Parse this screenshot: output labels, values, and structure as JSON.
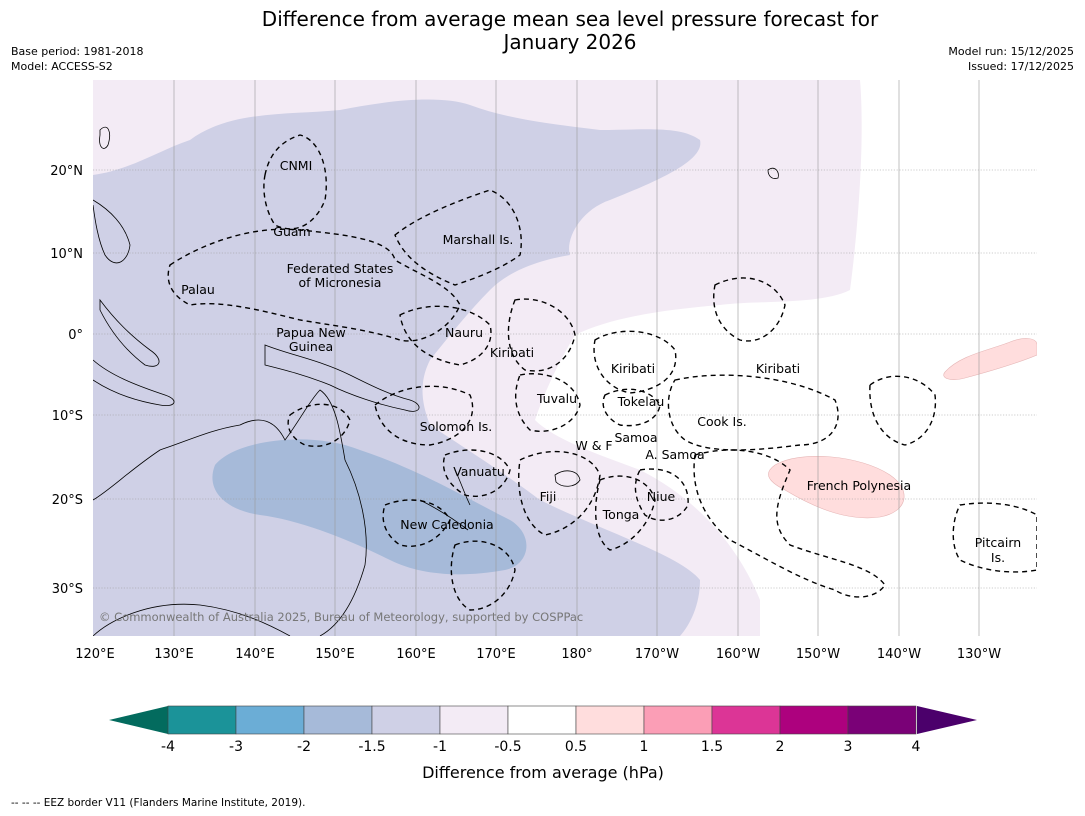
{
  "title_line1": "Difference from average mean sea level pressure forecast for",
  "title_line2": "January 2026",
  "meta": {
    "base_period": "Base period: 1981-2018",
    "model": "Model: ACCESS-S2",
    "model_run": "Model run: 15/12/2025",
    "issued": "Issued: 17/12/2025"
  },
  "axes": {
    "lon_labels": [
      "120°E",
      "130°E",
      "140°E",
      "150°E",
      "160°E",
      "170°E",
      "180°",
      "170°W",
      "160°W",
      "150°W",
      "140°W",
      "130°W"
    ],
    "lat_labels": [
      "20°N",
      "10°N",
      "0°",
      "10°S",
      "20°S",
      "30°S"
    ]
  },
  "region_labels": [
    {
      "id": "cnmi",
      "text": "CNMI"
    },
    {
      "id": "guam",
      "text": "Guam"
    },
    {
      "id": "marshall",
      "text": "Marshall Is."
    },
    {
      "id": "fsm1",
      "text": "Federated States"
    },
    {
      "id": "fsm2",
      "text": "of Micronesia"
    },
    {
      "id": "palau",
      "text": "Palau"
    },
    {
      "id": "png1",
      "text": "Papua New"
    },
    {
      "id": "png2",
      "text": "Guinea"
    },
    {
      "id": "nauru",
      "text": "Nauru"
    },
    {
      "id": "kiribati-w",
      "text": "Kiribati"
    },
    {
      "id": "kiribati-c",
      "text": "Kiribati"
    },
    {
      "id": "kiribati-e",
      "text": "Kiribati"
    },
    {
      "id": "tuvalu",
      "text": "Tuvalu"
    },
    {
      "id": "tokelau",
      "text": "Tokelau"
    },
    {
      "id": "solomon",
      "text": "Solomon Is."
    },
    {
      "id": "cook",
      "text": "Cook Is."
    },
    {
      "id": "wf",
      "text": "W & F"
    },
    {
      "id": "samoa",
      "text": "Samoa"
    },
    {
      "id": "asamoa",
      "text": "A. Samoa"
    },
    {
      "id": "vanuatu",
      "text": "Vanuatu"
    },
    {
      "id": "fiji",
      "text": "Fiji"
    },
    {
      "id": "niue",
      "text": "Niue"
    },
    {
      "id": "frpoly",
      "text": "French Polynesia"
    },
    {
      "id": "tonga",
      "text": "Tonga"
    },
    {
      "id": "newcal",
      "text": "New Caledonia"
    },
    {
      "id": "pitcairn1",
      "text": "Pitcairn"
    },
    {
      "id": "pitcairn2",
      "text": "Is."
    }
  ],
  "copyright": "© Commonwealth of Australia 2025, Bureau of Meteorology, supported by COSPPac",
  "colorbar": {
    "label": "Difference from average (hPa)",
    "tick_labels": [
      "-4",
      "-3",
      "-2",
      "-1.5",
      "-1",
      "-0.5",
      "0.5",
      "1",
      "1.5",
      "2",
      "3",
      "4"
    ],
    "under_color": "#036b5e",
    "over_color": "#4b006b",
    "colors": [
      "#1b9399",
      "#6badd6",
      "#a6bad9",
      "#cfd0e6",
      "#f3ebf5",
      "#ffffff",
      "#ffdddd",
      "#fb9eb6",
      "#dc3596",
      "#ad017e",
      "#7a0177"
    ]
  },
  "footer": "--  --  -- EEZ border V11 (Flanders Marine Institute, 2019)."
}
